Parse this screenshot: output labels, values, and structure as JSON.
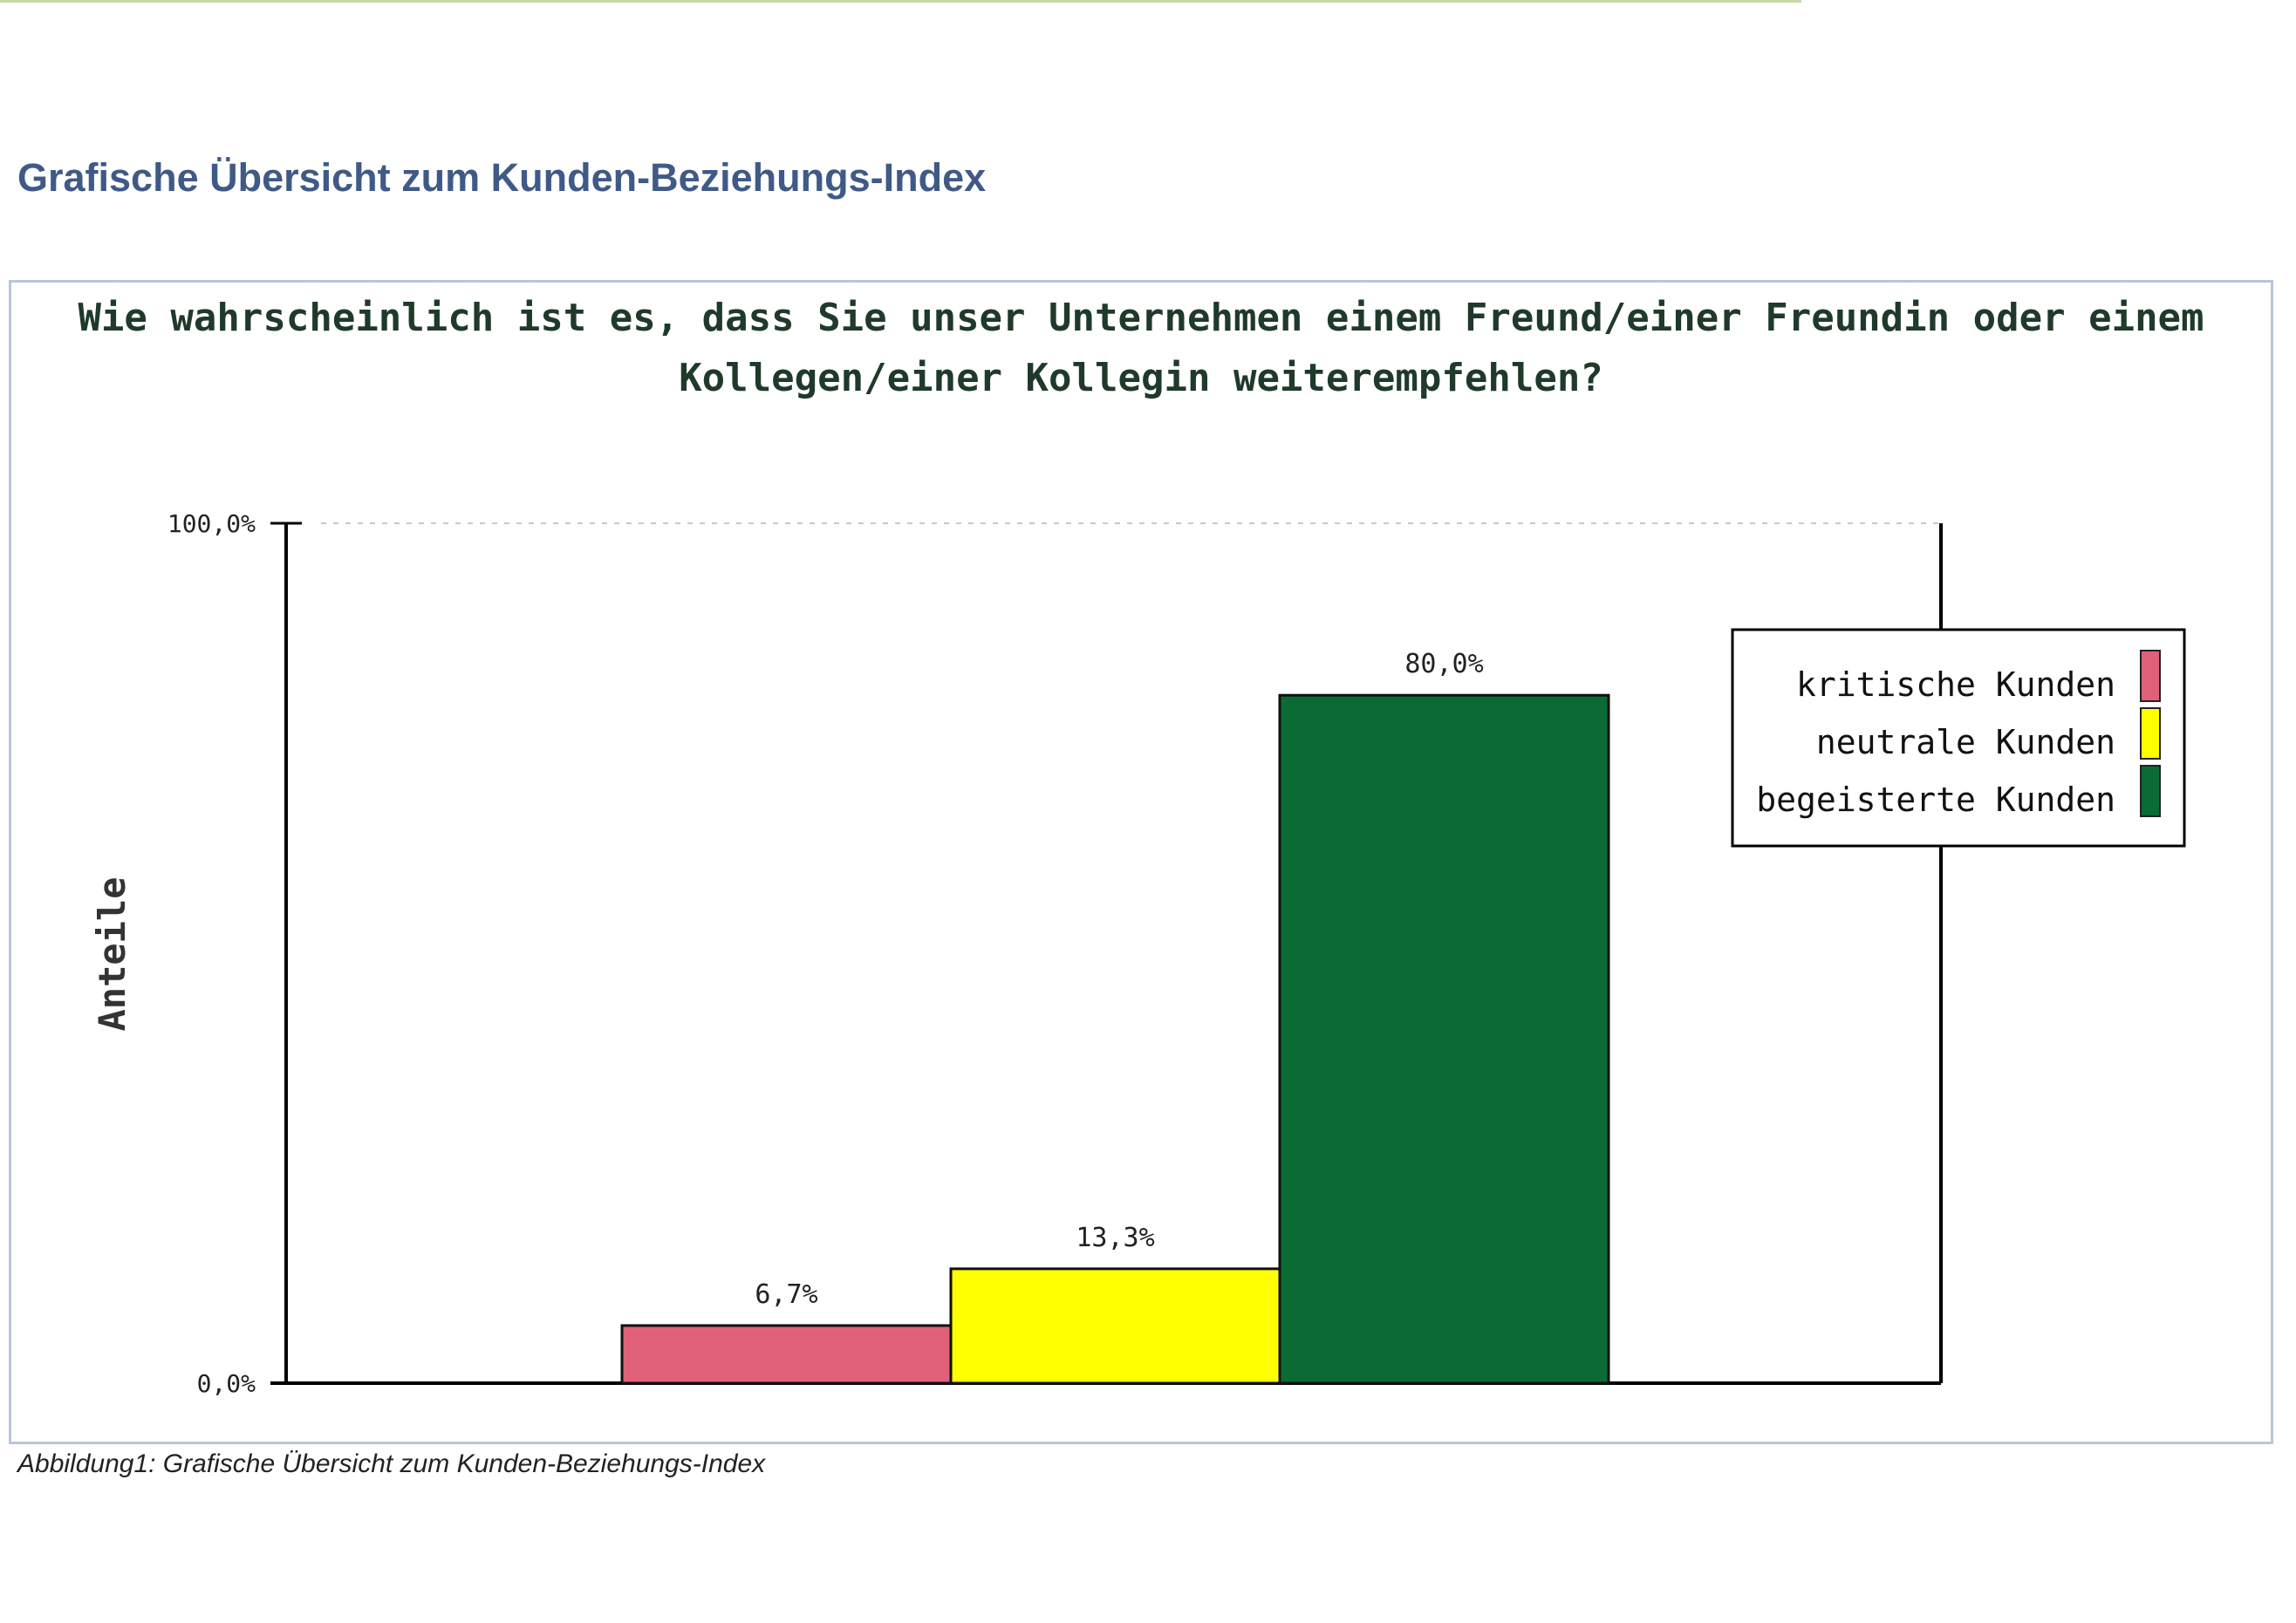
{
  "heading": "Grafische Übersicht zum Kunden-Beziehungs-Index",
  "caption": "Abbildung1: Grafische Übersicht zum Kunden-Beziehungs-Index",
  "chart_data": {
    "type": "bar",
    "title_lines": [
      "Wie wahrscheinlich ist es, dass Sie unser Unternehmen einem Freund/einer Freundin oder einem",
      "Kollegen/einer Kollegin weiterempfehlen?"
    ],
    "ylabel": "Anteile",
    "xlabel": "",
    "ylim": [
      0,
      100
    ],
    "yticks": [
      0,
      100
    ],
    "ytick_labels": [
      "0,0%",
      "100,0%"
    ],
    "grid": "dashed line at 100,0%",
    "legend_position": "right",
    "series": [
      {
        "name": "kritische Kunden",
        "value": 6.7,
        "label": "6,7%",
        "color": "#e0607a"
      },
      {
        "name": "neutrale Kunden",
        "value": 13.3,
        "label": "13,3%",
        "color": "#ffff00"
      },
      {
        "name": "begeisterte Kunden",
        "value": 80.0,
        "label": "80,0%",
        "color": "#0a6b35"
      }
    ]
  }
}
